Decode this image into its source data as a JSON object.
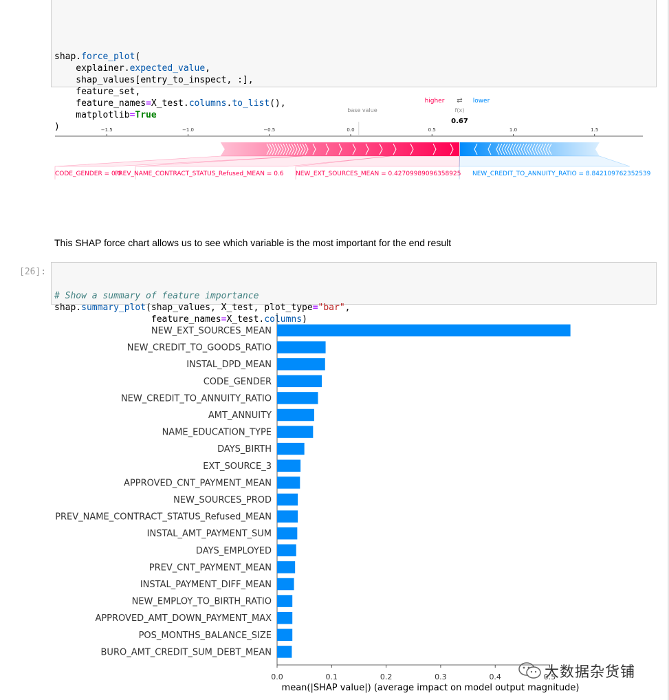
{
  "cell1": {
    "lines": [
      {
        "parts": [
          {
            "t": "shap."
          },
          {
            "t": "force_plot",
            "c": "fn"
          },
          {
            "t": "("
          }
        ]
      },
      {
        "parts": [
          {
            "t": "    explainer."
          },
          {
            "t": "expected_value",
            "c": "fn"
          },
          {
            "t": ","
          }
        ]
      },
      {
        "parts": [
          {
            "t": "    shap_values[entry_to_inspect, :],"
          }
        ]
      },
      {
        "parts": [
          {
            "t": "    feature_set,"
          }
        ]
      },
      {
        "parts": [
          {
            "t": "    feature_names"
          },
          {
            "t": "=",
            "c": "op"
          },
          {
            "t": "X_test."
          },
          {
            "t": "columns",
            "c": "fn"
          },
          {
            "t": "."
          },
          {
            "t": "to_list",
            "c": "fn"
          },
          {
            "t": "(),"
          }
        ]
      },
      {
        "parts": [
          {
            "t": "    matplotlib"
          },
          {
            "t": "=",
            "c": "op"
          },
          {
            "t": "True",
            "c": "kw"
          }
        ]
      },
      {
        "parts": [
          {
            "t": ")"
          }
        ]
      }
    ]
  },
  "force_plot": {
    "higher_label": "higher",
    "arrows_glyph": "⇄",
    "lower_label": "lower",
    "base_value_label": "base value",
    "fx_label": "f(x)",
    "fx_value": "0.67",
    "base_value": 0.05,
    "fx": 0.67,
    "axis_ticks": [
      {
        "v": -1.5,
        "label": "−1.5"
      },
      {
        "v": -1.0,
        "label": "−1.0"
      },
      {
        "v": -0.5,
        "label": "−0.5"
      },
      {
        "v": 0.0,
        "label": "0.0"
      },
      {
        "v": 0.5,
        "label": "0.5"
      },
      {
        "v": 1.0,
        "label": "1.0"
      },
      {
        "v": 1.5,
        "label": "1.5"
      }
    ],
    "positive_range": [
      -0.8,
      0.67
    ],
    "negative_range": [
      0.67,
      1.53
    ],
    "positive_color": "#ff0052",
    "negative_color": "#008bfb",
    "feature_labels": [
      {
        "text": "CODE_GENDER = 0.0",
        "side": "pos"
      },
      {
        "text": "PREV_NAME_CONTRACT_STATUS_Refused_MEAN = 0.6",
        "side": "pos"
      },
      {
        "text": "NEW_EXT_SOURCES_MEAN = 0.42709989096358925",
        "side": "pos"
      },
      {
        "text": "NEW_CREDIT_TO_ANNUITY_RATIO = 8.842109762352539",
        "side": "neg"
      }
    ]
  },
  "markdown": {
    "text": "This SHAP force chart allows us to see which variable is the most important for the end result"
  },
  "cell2": {
    "prompt": "[26]:",
    "lines": [
      {
        "parts": [
          {
            "t": "# Show a summary of feature importance",
            "c": "cm"
          }
        ]
      },
      {
        "parts": [
          {
            "t": "shap."
          },
          {
            "t": "summary_plot",
            "c": "fn"
          },
          {
            "t": "(shap_values, X_test, plot_type"
          },
          {
            "t": "=",
            "c": "op"
          },
          {
            "t": "\"bar\"",
            "c": "str"
          },
          {
            "t": ","
          }
        ]
      },
      {
        "parts": [
          {
            "t": "                  feature_names"
          },
          {
            "t": "=",
            "c": "op"
          },
          {
            "t": "X_test."
          },
          {
            "t": "columns",
            "c": "fn"
          },
          {
            "t": ")"
          }
        ]
      }
    ]
  },
  "chart_data": {
    "type": "bar",
    "orientation": "horizontal",
    "categories": [
      "NEW_EXT_SOURCES_MEAN",
      "NEW_CREDIT_TO_GOODS_RATIO",
      "INSTAL_DPD_MEAN",
      "CODE_GENDER",
      "NEW_CREDIT_TO_ANNUITY_RATIO",
      "AMT_ANNUITY",
      "NAME_EDUCATION_TYPE",
      "DAYS_BIRTH",
      "EXT_SOURCE_3",
      "APPROVED_CNT_PAYMENT_MEAN",
      "NEW_SOURCES_PROD",
      "PREV_NAME_CONTRACT_STATUS_Refused_MEAN",
      "INSTAL_AMT_PAYMENT_SUM",
      "DAYS_EMPLOYED",
      "PREV_CNT_PAYMENT_MEAN",
      "INSTAL_PAYMENT_DIFF_MEAN",
      "NEW_EMPLOY_TO_BIRTH_RATIO",
      "APPROVED_AMT_DOWN_PAYMENT_MAX",
      "POS_MONTHS_BALANCE_SIZE",
      "BURO_AMT_CREDIT_SUM_DEBT_MEAN"
    ],
    "values": [
      0.538,
      0.089,
      0.088,
      0.082,
      0.075,
      0.068,
      0.066,
      0.05,
      0.043,
      0.042,
      0.038,
      0.038,
      0.037,
      0.035,
      0.033,
      0.031,
      0.028,
      0.028,
      0.028,
      0.027
    ],
    "xticks": [
      0.0,
      0.1,
      0.2,
      0.3,
      0.4,
      0.5
    ],
    "xtick_labels": [
      "0.0",
      "0.1",
      "0.2",
      "0.3",
      "0.4",
      "0.5"
    ],
    "xlabel": "mean(|SHAP value|) (average impact on model output magnitude)",
    "xlim": [
      0,
      0.5
    ],
    "bar_color": "#008bfb"
  },
  "watermark": {
    "text": "大数据杂货铺",
    "icon": "wechat-icon"
  }
}
